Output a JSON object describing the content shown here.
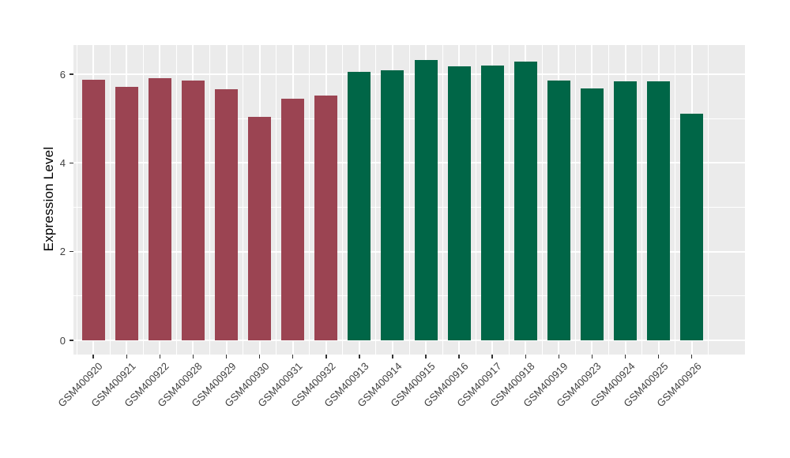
{
  "chart_data": {
    "type": "bar",
    "title": "",
    "xlabel": "",
    "ylabel": "Expression Level",
    "categories": [
      "GSM400920",
      "GSM400921",
      "GSM400922",
      "GSM400928",
      "GSM400929",
      "GSM400930",
      "GSM400931",
      "GSM400932",
      "GSM400913",
      "GSM400914",
      "GSM400915",
      "GSM400916",
      "GSM400917",
      "GSM400918",
      "GSM400919",
      "GSM400923",
      "GSM400924",
      "GSM400925",
      "GSM400926"
    ],
    "values": [
      5.88,
      5.72,
      5.91,
      5.85,
      5.67,
      5.04,
      5.45,
      5.52,
      6.05,
      6.09,
      6.33,
      6.18,
      6.2,
      6.28,
      5.86,
      5.68,
      5.84,
      5.84,
      5.11
    ],
    "bar_groups": [
      "group1",
      "group1",
      "group1",
      "group1",
      "group1",
      "group1",
      "group1",
      "group1",
      "group2",
      "group2",
      "group2",
      "group2",
      "group2",
      "group2",
      "group2",
      "group2",
      "group2",
      "group2",
      "group2"
    ],
    "group_colors": {
      "group1": "#9B4452",
      "group2": "#006647"
    },
    "y_ticks": [
      0,
      2,
      4,
      6
    ],
    "y_minor_ticks": [
      1,
      3,
      5
    ],
    "ylim": [
      -0.32,
      6.66
    ],
    "legend": "none",
    "grid": "on",
    "panel_bg": "#EBEBEB",
    "grid_color": "#FFFFFF",
    "tick_color": "#333333",
    "axis_text_color": "#404040",
    "axis_title_color": "#000000"
  }
}
